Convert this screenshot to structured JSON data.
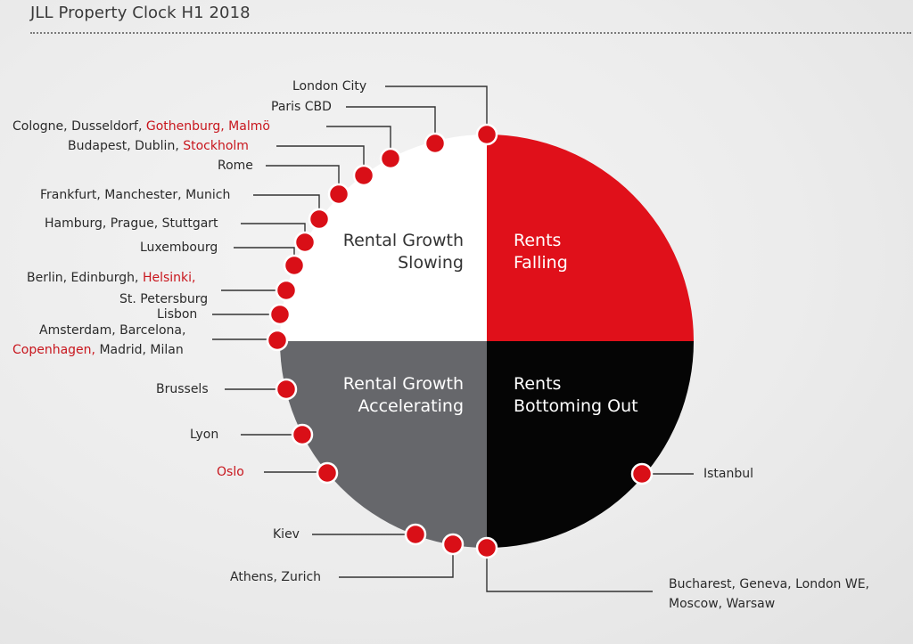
{
  "title": "JLL Property Clock H1 2018",
  "colors": {
    "red": "#e0101a",
    "red_text": "#c8161d",
    "dark": "#050505",
    "gray": "#66676b",
    "white": "#ffffff",
    "dot": "#d90f17"
  },
  "quadrants": {
    "top_left": {
      "line1": "Rental Growth",
      "line2": "Slowing"
    },
    "top_right": {
      "line1": "Rents",
      "line2": "Falling"
    },
    "bottom_left": {
      "line1": "Rental Growth",
      "line2": "Accelerating"
    },
    "bottom_right": {
      "line1": "Rents",
      "line2": "Bottoming Out"
    }
  },
  "labels": {
    "london_city": "London City",
    "paris_cbd": "Paris CBD",
    "cologne_a": "Cologne, Dusseldorf, ",
    "cologne_b": "Gothenburg, Malmö",
    "budapest_a": "Budapest, Dublin, ",
    "budapest_b": "Stockholm",
    "rome": "Rome",
    "frankfurt": "Frankfurt, Manchester, Munich",
    "hamburg": "Hamburg, Prague, Stuttgart",
    "luxembourg": "Luxembourg",
    "berlin_a": "Berlin, Edinburgh, ",
    "berlin_b": "Helsinki,",
    "st_petersburg": "St. Petersburg",
    "lisbon": "Lisbon",
    "amsterdam": "Amsterdam, Barcelona,",
    "copenhagen_a": "Copenhagen,",
    "copenhagen_b": " Madrid, Milan",
    "brussels": "Brussels",
    "lyon": "Lyon",
    "oslo": "Oslo",
    "kiev": "Kiev",
    "athens": "Athens, Zurich",
    "istanbul": "Istanbul",
    "bucharest_line1": "Bucharest, Geneva, London WE,",
    "bucharest_line2": "Moscow, Warsaw"
  }
}
